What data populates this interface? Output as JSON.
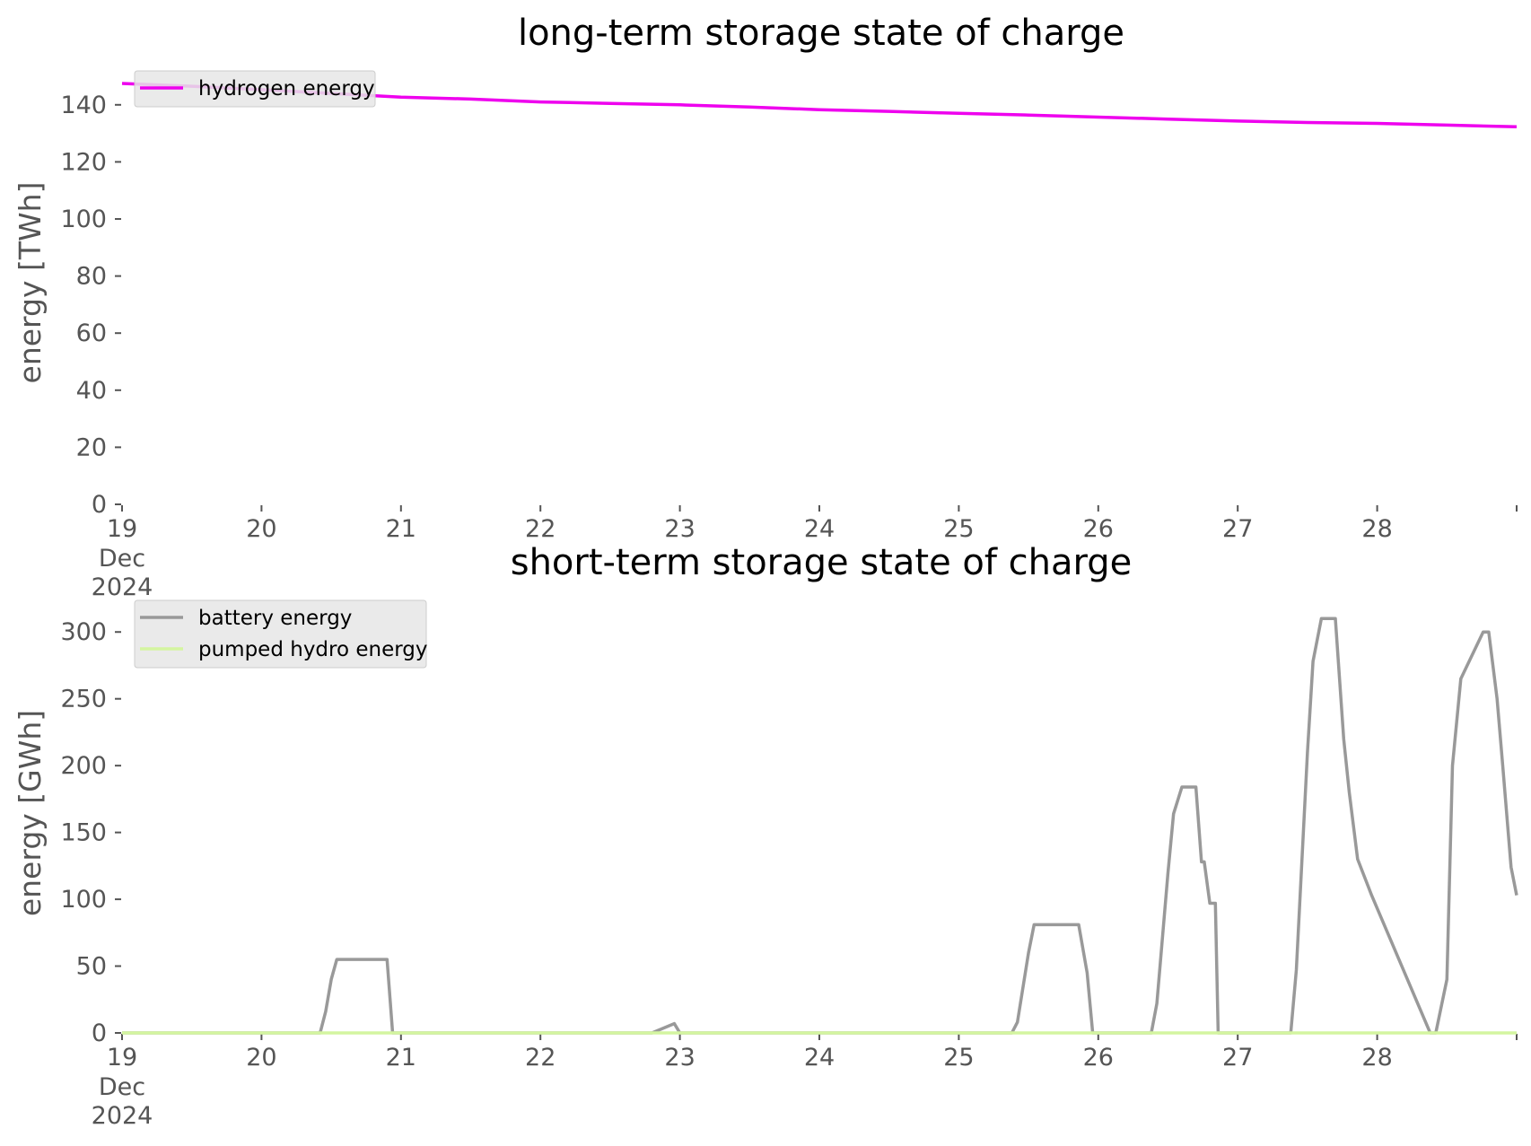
{
  "chart_data": [
    {
      "type": "line",
      "title": "long-term storage state of charge",
      "ylabel": "energy [TWh]",
      "xlabel": "",
      "ylim": [
        0,
        150
      ],
      "xlim": [
        "2024-12-19",
        "2024-12-29"
      ],
      "yticks": [
        "0",
        "20",
        "40",
        "60",
        "80",
        "100",
        "120",
        "140"
      ],
      "xticks": [
        "19",
        "20",
        "21",
        "22",
        "23",
        "24",
        "25",
        "26",
        "27",
        "28"
      ],
      "xtick_sublabel": [
        "Dec",
        "2024"
      ],
      "grid": false,
      "legend_position": "top-left",
      "series": [
        {
          "name": "hydrogen energy",
          "color": "#ee00ee",
          "x": [
            0,
            0.5,
            1,
            1.5,
            2,
            2.5,
            3,
            3.5,
            4,
            4.5,
            5,
            5.5,
            6,
            6.5,
            7,
            7.5,
            8,
            8.5,
            9,
            9.5,
            10
          ],
          "values": [
            147.5,
            146.5,
            145.3,
            144.0,
            142.7,
            142.0,
            141.0,
            140.5,
            140.0,
            139.2,
            138.3,
            137.7,
            137.0,
            136.4,
            135.7,
            135.0,
            134.3,
            133.8,
            133.5,
            132.9,
            132.3
          ]
        }
      ]
    },
    {
      "type": "line",
      "title": "short-term storage state of charge",
      "ylabel": "energy [GWh]",
      "xlabel": "",
      "ylim": [
        0,
        325
      ],
      "xlim": [
        "2024-12-19",
        "2024-12-29"
      ],
      "yticks": [
        "0",
        "50",
        "100",
        "150",
        "200",
        "250",
        "300"
      ],
      "xticks": [
        "19",
        "20",
        "21",
        "22",
        "23",
        "24",
        "25",
        "26",
        "27",
        "28"
      ],
      "xtick_sublabel": [
        "Dec",
        "2024"
      ],
      "grid": false,
      "legend_position": "top-left",
      "series": [
        {
          "name": "battery energy",
          "color": "#999999",
          "x": [
            0,
            1.42,
            1.46,
            1.5,
            1.54,
            1.9,
            1.94,
            2.0,
            3.8,
            3.96,
            4.0,
            6.38,
            6.42,
            6.5,
            6.54,
            6.6,
            6.86,
            6.92,
            6.96,
            7.38,
            7.42,
            7.5,
            7.54,
            7.6,
            7.7,
            7.74,
            7.76,
            7.8,
            7.84,
            7.86,
            7.9,
            7.96,
            8.38,
            8.42,
            8.5,
            8.54,
            8.6,
            8.7,
            8.76,
            8.8,
            8.86,
            8.96,
            9.38,
            9.42,
            9.5,
            9.54,
            9.6,
            9.76,
            9.8,
            9.86,
            9.9,
            9.96,
            10.0
          ],
          "values": [
            0,
            0,
            16,
            40,
            55,
            55,
            0,
            0,
            0,
            7,
            0,
            0,
            8,
            60,
            81,
            81,
            81,
            45,
            0,
            0,
            22,
            120,
            164,
            184,
            184,
            128,
            128,
            97,
            97,
            0,
            0,
            0,
            0,
            47,
            210,
            278,
            310,
            310,
            220,
            180,
            130,
            103,
            0,
            0,
            40,
            200,
            265,
            300,
            300,
            250,
            200,
            124,
            103
          ]
        },
        {
          "name": "pumped hydro energy",
          "color": "#d4f5a0",
          "x": [
            0,
            10
          ],
          "values": [
            0,
            0
          ]
        }
      ]
    }
  ]
}
